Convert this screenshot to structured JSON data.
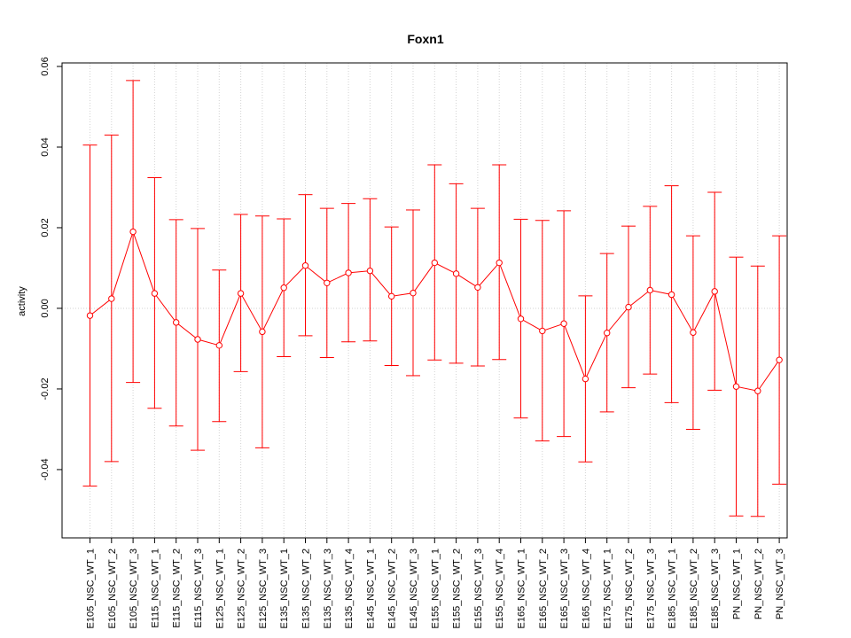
{
  "chart_data": {
    "type": "line",
    "title": "Foxn1",
    "xlabel": "",
    "ylabel": "activity",
    "ylim": [
      -0.0565,
      0.06
    ],
    "yticks": [
      "-0.04",
      "-0.02",
      "0.00",
      "0.02",
      "0.04",
      "0.06"
    ],
    "ytick_values": [
      -0.04,
      -0.02,
      0.0,
      0.02,
      0.04,
      0.06
    ],
    "grid": true,
    "error_bars": true,
    "colors": {
      "series": "#ff0000",
      "grid": "#d3d3d3",
      "axis": "#000000"
    },
    "categories": [
      "E105_NSC_WT_1",
      "E105_NSC_WT_2",
      "E105_NSC_WT_3",
      "E115_NSC_WT_1",
      "E115_NSC_WT_2",
      "E115_NSC_WT_3",
      "E125_NSC_WT_1",
      "E125_NSC_WT_2",
      "E125_NSC_WT_3",
      "E135_NSC_WT_1",
      "E135_NSC_WT_2",
      "E135_NSC_WT_3",
      "E135_NSC_WT_4",
      "E145_NSC_WT_1",
      "E145_NSC_WT_2",
      "E145_NSC_WT_3",
      "E155_NSC_WT_1",
      "E155_NSC_WT_2",
      "E155_NSC_WT_3",
      "E155_NSC_WT_4",
      "E165_NSC_WT_1",
      "E165_NSC_WT_2",
      "E165_NSC_WT_3",
      "E165_NSC_WT_4",
      "E175_NSC_WT_1",
      "E175_NSC_WT_2",
      "E175_NSC_WT_3",
      "E185_NSC_WT_1",
      "E185_NSC_WT_2",
      "E185_NSC_WT_3",
      "PN_NSC_WT_1",
      "PN_NSC_WT_2",
      "PN_NSC_WT_3"
    ],
    "series": [
      {
        "values": [
          -0.0018,
          0.0024,
          0.019,
          0.0037,
          -0.0035,
          -0.0077,
          -0.0092,
          0.0037,
          -0.0058,
          0.0051,
          0.0106,
          0.0063,
          0.0088,
          0.0093,
          0.003,
          0.0038,
          0.0113,
          0.0086,
          0.0052,
          0.0113,
          -0.0026,
          -0.0056,
          -0.0038,
          -0.0175,
          -0.0061,
          0.0003,
          0.0045,
          0.0034,
          -0.006,
          0.0042,
          -0.0194,
          -0.0205,
          -0.0128
        ],
        "upper": [
          0.0405,
          0.043,
          0.0565,
          0.0324,
          0.022,
          0.0198,
          0.0095,
          0.0233,
          0.0229,
          0.0222,
          0.0282,
          0.0248,
          0.026,
          0.0272,
          0.0202,
          0.0244,
          0.0356,
          0.0309,
          0.0248,
          0.0356,
          0.0221,
          0.0218,
          0.0242,
          0.0031,
          0.0136,
          0.0204,
          0.0253,
          0.0304,
          0.018,
          0.0288,
          0.0127,
          0.0105,
          0.018
        ],
        "lower": [
          -0.0441,
          -0.038,
          -0.0184,
          -0.0248,
          -0.0292,
          -0.0352,
          -0.0281,
          -0.0157,
          -0.0346,
          -0.012,
          -0.0068,
          -0.0122,
          -0.0083,
          -0.0081,
          -0.0142,
          -0.0167,
          -0.0128,
          -0.0136,
          -0.0143,
          -0.0127,
          -0.0272,
          -0.0329,
          -0.0318,
          -0.0381,
          -0.0257,
          -0.0197,
          -0.0163,
          -0.0234,
          -0.03,
          -0.0203,
          -0.0515,
          -0.0516,
          -0.0436
        ]
      }
    ]
  }
}
